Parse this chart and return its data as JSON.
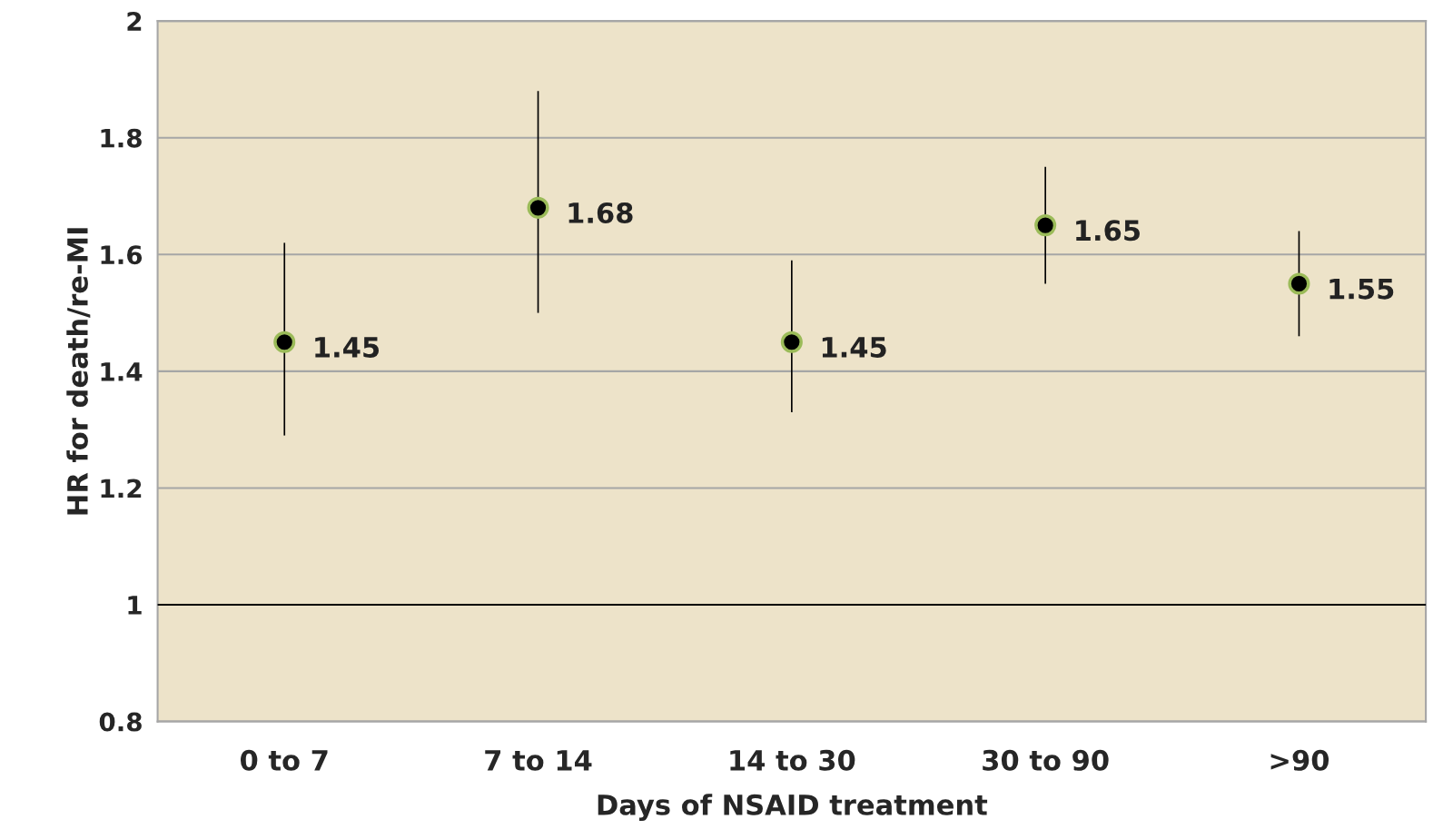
{
  "chart_data": {
    "type": "scatter",
    "xlabel": "Days of NSAID treatment",
    "ylabel": "HR for death/re-MI",
    "categories": [
      "0 to 7",
      "7 to 14",
      "14 to 30",
      "30 to 90",
      ">90"
    ],
    "series": [
      {
        "color": "#000000",
        "values": [
          1.45,
          1.68,
          1.45,
          1.65,
          1.55
        ],
        "errors": [
          [
            1.29,
            1.62
          ],
          [
            1.5,
            1.88
          ],
          [
            1.33,
            1.59
          ],
          [
            1.55,
            1.75
          ],
          [
            1.46,
            1.64
          ]
        ]
      }
    ],
    "ylim": [
      0.8,
      2
    ],
    "yticks": [
      0.8,
      1,
      1.2,
      1.4,
      1.6,
      1.8,
      2
    ],
    "ref_lines": [
      {
        "axis": "y",
        "value": 1,
        "color": "#000000"
      }
    ],
    "grid": "y",
    "marker": "circle",
    "data_labels": true,
    "legend": false
  }
}
